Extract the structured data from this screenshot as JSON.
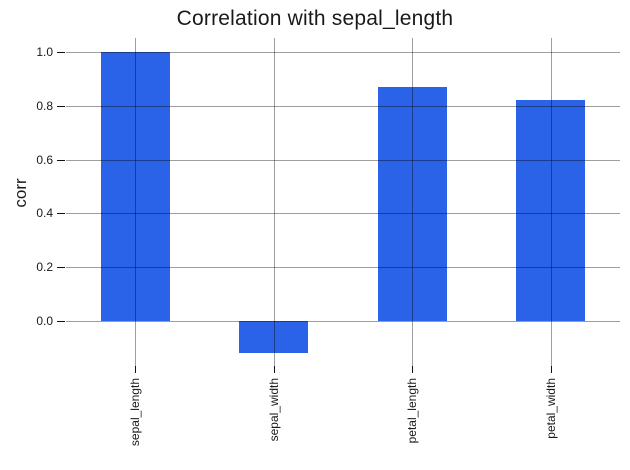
{
  "chart_data": {
    "type": "bar",
    "title": "Correlation with sepal_length",
    "categories": [
      "sepal_length",
      "sepal_width",
      "petal_length",
      "petal_width"
    ],
    "values": [
      1.0,
      -0.12,
      0.87,
      0.82
    ],
    "xlabel": "",
    "ylabel": "corr",
    "yticks": [
      0.0,
      0.2,
      0.4,
      0.6,
      0.8,
      1.0
    ],
    "ytick_labels": [
      "0.0",
      "0.2",
      "0.4",
      "0.6",
      "0.8",
      "1.0"
    ],
    "ylim": [
      -0.16,
      1.05
    ],
    "grid": true,
    "legend": false,
    "bar_color": "#2b63e8",
    "gridline_color": "rgba(0,0,0,0.38)",
    "tick_color": "#111111",
    "text_color": "#1a1a1a",
    "background_color": "#ffffff"
  }
}
